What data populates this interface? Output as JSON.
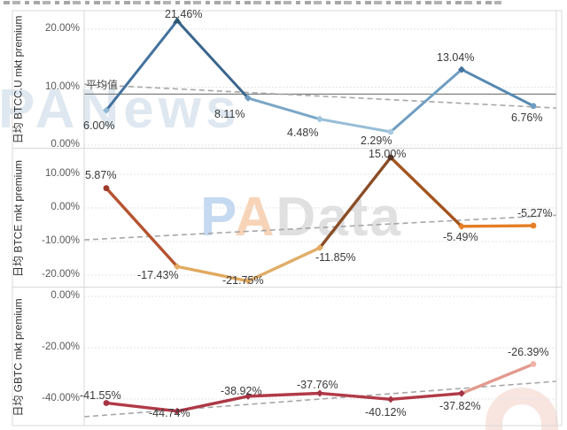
{
  "watermarks": {
    "top_text": "PANews",
    "mid_p": "P",
    "mid_a": "A",
    "mid_rest": "Data"
  },
  "colors": {
    "trendline": "#a6a6a6",
    "average_line": "#808080",
    "gridline": "#e3e3e3",
    "border": "#d9d9d9",
    "tick_text": "#595959",
    "label_text": "#3a3a3a",
    "series_top_segments": [
      "#44729e",
      "#3a658d",
      "#7ba6c7",
      "#98bed7",
      "#6f9ec2",
      "#5589b1"
    ],
    "series_mid_segments": [
      "#b5532f",
      "#e2a95f",
      "#e0ad68",
      "#8a4d26",
      "#a3541f",
      "#e57e26"
    ],
    "series_bot_segments": [
      "#b23a48",
      "#ad3845",
      "#b23a48",
      "#b23a48",
      "#b23a48",
      "#e39a8e"
    ],
    "markers_top": [
      "diamond:#8fb8d4",
      "triangle:#2e5671",
      "diamond:#6f9ec2",
      "diamond:#9cc3dc",
      "circle:#a9cade",
      "diamond:#44729e",
      "circle:#6f9ec2"
    ],
    "markers_mid": [
      "circle:#9e3a2b",
      "diamond:#e3ac64",
      "diamond:#e3ac64",
      "diamond:#e3ac64",
      "circle:#5a3320",
      "diamond:#e57e26",
      "circle:#e57e26"
    ],
    "markers_bot": [
      "circle:#a63446",
      "diamond:#a63446",
      "diamond:#a63446",
      "diamond:#a63446",
      "diamond:#a63446",
      "diamond:#a63446",
      "circle:#efb3a6"
    ]
  },
  "chart_data": [
    {
      "type": "line",
      "ylabel": "日均 BTCC.U mkt premium",
      "values": [
        6.0,
        21.46,
        8.11,
        4.48,
        2.29,
        13.04,
        6.76
      ],
      "point_labels": [
        "6.00%",
        "21.46%",
        "8.11%",
        "4.48%",
        "2.29%",
        "13.04%",
        "6.76%"
      ],
      "yticks": [
        {
          "label": "20.00%",
          "value": 20
        },
        {
          "label": "10.00%",
          "value": 10
        },
        {
          "label": "0.00%",
          "value": 0
        }
      ],
      "ylim": [
        -0.5,
        23
      ],
      "average_line": {
        "label": "平均值",
        "value": 8.8
      },
      "trendline": {
        "start": 10.5,
        "end": 6.4
      },
      "grid": true,
      "legend": "none",
      "x_labels_visible": false
    },
    {
      "type": "line",
      "ylabel": "日均 BTCE mkt premium",
      "values": [
        5.87,
        -17.43,
        -21.75,
        -11.85,
        15.0,
        -5.49,
        -5.27
      ],
      "point_labels": [
        "5.87%",
        "-17.43%",
        "-21.75%",
        "-11.85%",
        "15.00%",
        "-5.49%",
        "-5.27%"
      ],
      "yticks": [
        {
          "label": "10.00%",
          "value": 10
        },
        {
          "label": "0.00%",
          "value": 0
        },
        {
          "label": "-10.00%",
          "value": -10
        },
        {
          "label": "-20.00%",
          "value": -20
        }
      ],
      "ylim": [
        -23.5,
        17
      ],
      "trendline": {
        "start": -9.5,
        "end": -2.2
      },
      "grid": true,
      "legend": "none",
      "x_labels_visible": false
    },
    {
      "type": "line",
      "ylabel": "日均 GBTC mkt premium",
      "values": [
        -41.55,
        -44.74,
        -38.92,
        -37.76,
        -40.12,
        -37.82,
        -26.39
      ],
      "point_labels": [
        "-41.55%",
        "-44.74%",
        "-38.92%",
        "-37.76%",
        "-40.12%",
        "-37.82%",
        "-26.39%"
      ],
      "yticks": [
        {
          "label": "0.00%",
          "value": 0
        },
        {
          "label": "-20.00%",
          "value": -20
        },
        {
          "label": "-40.00%",
          "value": -40
        }
      ],
      "ylim": [
        -50,
        2.5
      ],
      "trendline": {
        "start": -46.9,
        "end": -33.1
      },
      "grid": true,
      "legend": "none",
      "x_labels_visible": false
    }
  ]
}
